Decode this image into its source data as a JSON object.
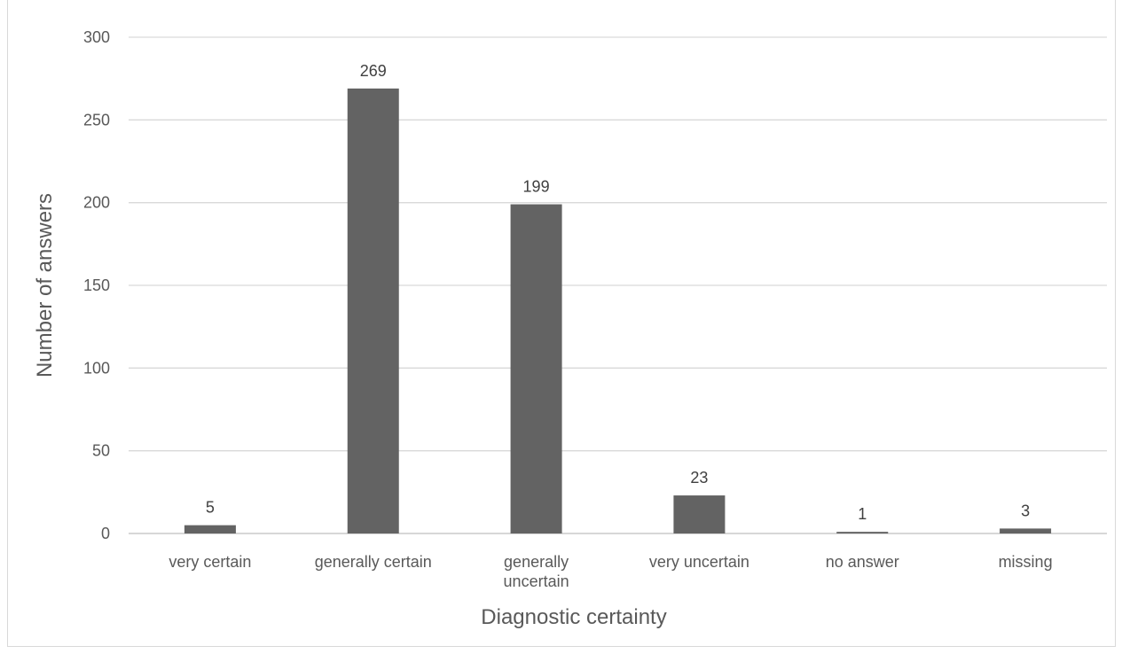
{
  "chart_data": {
    "type": "bar",
    "title": "",
    "xlabel": "Diagnostic certainty",
    "ylabel": "Number of answers",
    "categories": [
      [
        "very certain"
      ],
      [
        "generally certain"
      ],
      [
        "generally",
        "uncertain"
      ],
      [
        "very uncertain"
      ],
      [
        "no answer"
      ],
      [
        "missing"
      ]
    ],
    "values": [
      5,
      269,
      199,
      23,
      1,
      3
    ],
    "ylim": [
      0,
      300
    ],
    "yticks": [
      0,
      50,
      100,
      150,
      200,
      250,
      300
    ],
    "grid": true,
    "legend": "none",
    "colors": {
      "bar": "#636363",
      "grid": "#d9d9d9",
      "axis": "#bfbfbf",
      "text": "#595959"
    }
  }
}
